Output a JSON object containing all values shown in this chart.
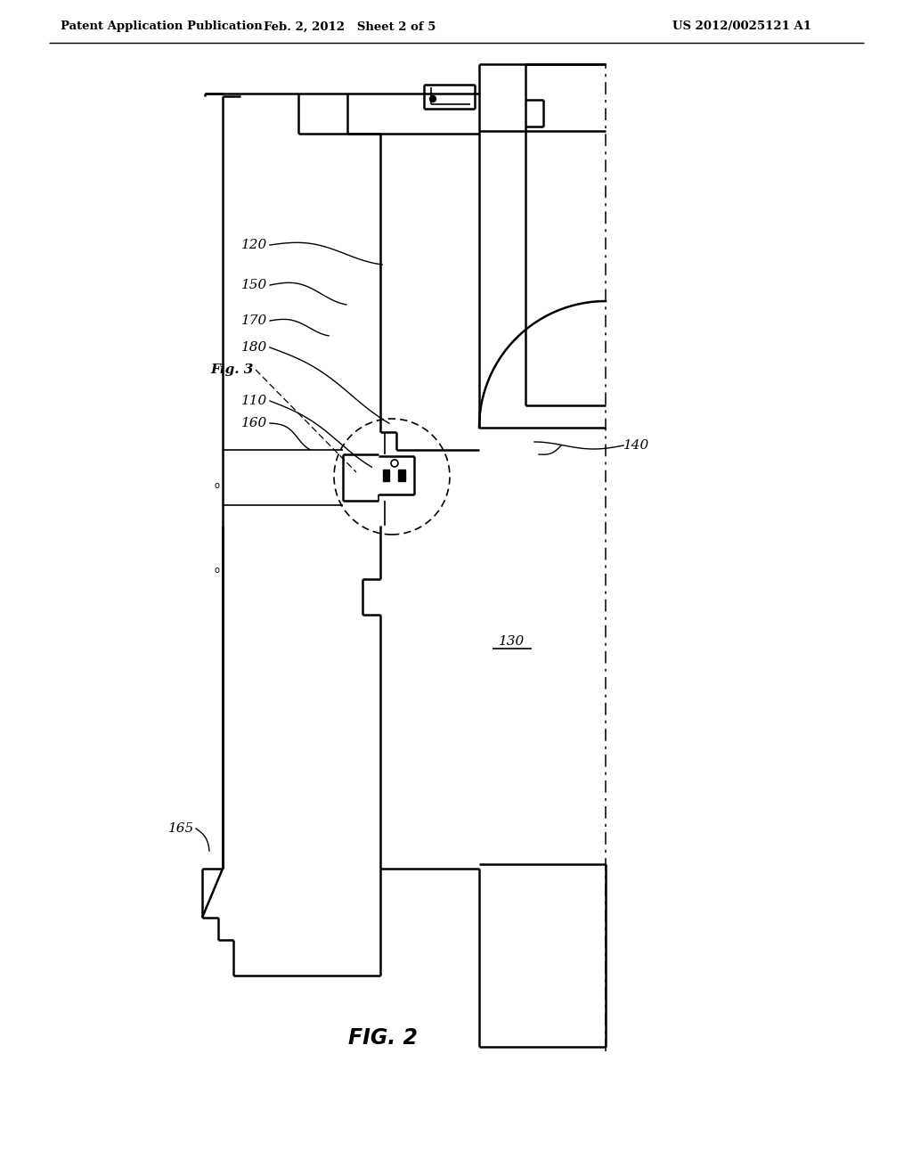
{
  "title_left": "Patent Application Publication",
  "title_mid": "Feb. 2, 2012   Sheet 2 of 5",
  "title_right": "US 2012/0025121 A1",
  "fig_label": "FIG. 2",
  "background": "#ffffff"
}
